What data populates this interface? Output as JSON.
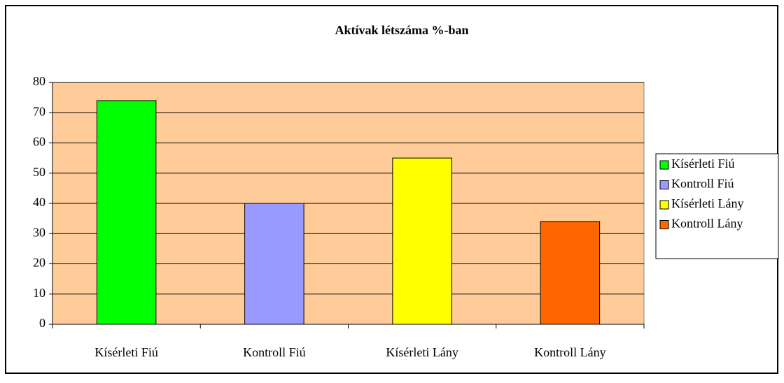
{
  "chart_data": {
    "type": "bar",
    "title": "Aktívak létszáma %-ban",
    "categories": [
      "Kísérleti Fiú",
      "Kontroll Fiú",
      "Kísérleti Lány",
      "Kontroll Lány"
    ],
    "values": [
      74,
      40,
      55,
      34
    ],
    "colors": [
      "#00ff00",
      "#9999ff",
      "#ffff00",
      "#ff6600"
    ],
    "plot_background": "#ffcc99",
    "ylim": [
      0,
      80
    ],
    "yticks": [
      0,
      10,
      20,
      30,
      40,
      50,
      60,
      70,
      80
    ],
    "grid": true,
    "legend": "right"
  }
}
